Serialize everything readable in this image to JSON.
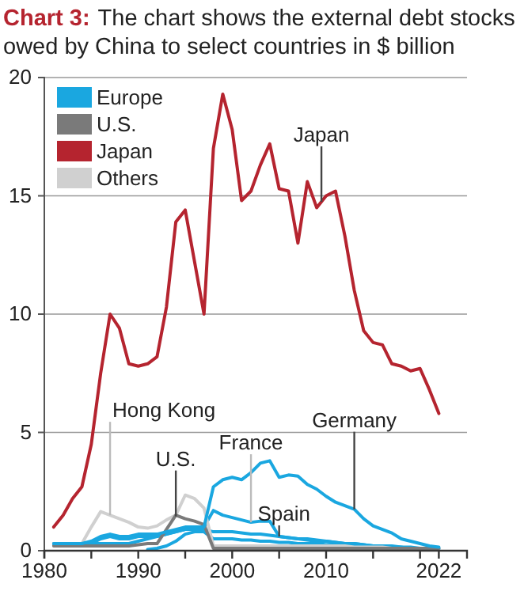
{
  "chart_data": {
    "type": "line",
    "title": "Chart 3:",
    "subtitle": "The chart shows the external debt stocks owed by China to select countries in $ billion",
    "x": [
      1981,
      1982,
      1983,
      1984,
      1985,
      1986,
      1987,
      1988,
      1989,
      1990,
      1991,
      1992,
      1993,
      1994,
      1995,
      1996,
      1997,
      1998,
      1999,
      2000,
      2001,
      2002,
      2003,
      2004,
      2005,
      2006,
      2007,
      2008,
      2009,
      2010,
      2011,
      2012,
      2013,
      2014,
      2015,
      2016,
      2017,
      2018,
      2019,
      2020,
      2021,
      2022
    ],
    "series": [
      {
        "name": "Europe",
        "color": "#1aa7e0",
        "values": [
          0.3,
          0.3,
          0.3,
          0.3,
          0.4,
          0.6,
          0.7,
          0.6,
          0.6,
          0.7,
          0.7,
          0.7,
          0.8,
          0.9,
          1.0,
          1.0,
          1.0,
          2.7,
          3.0,
          3.1,
          3.0,
          3.3,
          3.7,
          3.8,
          3.1,
          3.2,
          3.15,
          2.8,
          2.6,
          2.3,
          2.05,
          1.9,
          1.75,
          1.35,
          1.05,
          0.9,
          0.75,
          0.5,
          0.4,
          0.3,
          0.2,
          0.15
        ]
      },
      {
        "name": "U.S.",
        "color": "#7a7a7a",
        "values": [
          0.2,
          0.2,
          0.2,
          0.2,
          0.2,
          0.2,
          0.2,
          0.2,
          0.2,
          0.25,
          0.3,
          0.3,
          0.9,
          1.5,
          1.35,
          1.25,
          1.1,
          0.1,
          0.1,
          0.1,
          0.1,
          0.1,
          0.1,
          0.1,
          0.1,
          0.1,
          0.1,
          0.1,
          0.1,
          0.1,
          0.1,
          0.1,
          0.1,
          0.1,
          0.1,
          0.1,
          0.1,
          0.1,
          0.1,
          0.1,
          0.1,
          0.1
        ]
      },
      {
        "name": "Japan",
        "color": "#b5242f",
        "values": [
          1.0,
          1.5,
          2.2,
          2.7,
          4.5,
          7.5,
          10.0,
          9.4,
          7.9,
          7.8,
          7.9,
          8.2,
          10.3,
          13.9,
          14.4,
          12.2,
          10.0,
          17.0,
          19.3,
          17.8,
          14.8,
          15.2,
          16.3,
          17.2,
          15.3,
          15.2,
          13.0,
          15.6,
          14.5,
          15.0,
          15.2,
          13.3,
          11.0,
          9.3,
          8.8,
          8.7,
          7.9,
          7.8,
          7.6,
          7.7,
          6.8,
          5.8
        ]
      },
      {
        "name": "Others",
        "color": "#d0d0d0",
        "values": [
          0.3,
          0.3,
          0.3,
          0.3,
          1.0,
          1.65,
          1.5,
          1.35,
          1.2,
          1.0,
          0.95,
          1.05,
          1.3,
          1.5,
          2.35,
          2.2,
          1.8,
          0.2,
          0.2,
          0.2,
          0.2,
          0.2,
          0.2,
          0.2,
          0.2,
          0.2,
          0.2,
          0.2,
          0.2,
          0.2,
          0.2,
          0.2,
          0.15,
          0.15,
          0.15,
          0.15,
          0.1,
          0.1,
          0.1,
          0.1,
          0.1,
          0.1
        ]
      },
      {
        "color": "#1aa7e0",
        "values": [
          0.25,
          0.25,
          0.25,
          0.25,
          0.3,
          0.5,
          0.6,
          0.5,
          0.5,
          0.6,
          0.6,
          0.6,
          0.7,
          0.8,
          0.9,
          1.0,
          1.0,
          1.7,
          1.5,
          1.4,
          1.3,
          1.2,
          1.25,
          1.25,
          0.6,
          0.55,
          0.5,
          0.45,
          0.4,
          0.4,
          0.35,
          0.3,
          0.3,
          0.25,
          0.2,
          0.2,
          0.2,
          0.15,
          0.15,
          0.1,
          0.1,
          0.1
        ]
      },
      {
        "color": "#1aa7e0",
        "values": [
          0.3,
          0.3,
          0.3,
          0.3,
          0.3,
          0.3,
          0.3,
          0.3,
          0.3,
          0.4,
          0.5,
          0.6,
          0.7,
          0.8,
          0.9,
          0.9,
          0.9,
          0.8,
          0.8,
          0.8,
          0.75,
          0.7,
          0.7,
          0.65,
          0.6,
          0.55,
          0.5,
          0.5,
          0.45,
          0.4,
          0.35,
          0.3,
          0.3,
          0.25,
          0.2,
          0.2,
          0.15,
          0.15,
          0.1,
          0.1,
          0.1,
          0.1
        ]
      },
      {
        "color": "#1aa7e0",
        "values": [
          null,
          null,
          null,
          null,
          null,
          null,
          null,
          null,
          null,
          null,
          0.05,
          0.1,
          0.2,
          0.4,
          0.7,
          0.8,
          0.8,
          0.5,
          0.5,
          0.5,
          0.45,
          0.45,
          0.4,
          0.4,
          0.35,
          0.35,
          0.3,
          0.3,
          0.3,
          0.25,
          0.25,
          0.2,
          0.2,
          0.2,
          0.15,
          0.15,
          0.1,
          0.1,
          0.1,
          0.05,
          0.05,
          0.05
        ]
      }
    ],
    "xlim": [
      1980,
      2025
    ],
    "xticks": [
      1980,
      {
        "value": 1985,
        "label": null
      },
      1990,
      {
        "value": 1995,
        "label": null
      },
      2000,
      {
        "value": 2005,
        "label": null
      },
      2010,
      {
        "value": 2015,
        "label": null
      },
      {
        "value": 2020,
        "label": null
      },
      2022
    ],
    "ylim": [
      0,
      20
    ],
    "yticks": [
      0,
      5,
      10,
      15,
      20
    ],
    "grid": "y",
    "legend": "top left",
    "annotations": [
      {
        "text": "Japan",
        "x": 2009.5,
        "y": 14.75
      },
      {
        "text": "Hong Kong",
        "x": 1987,
        "y": 1.5
      },
      {
        "text": "U.S.",
        "x": 1994,
        "y": 1.45
      },
      {
        "text": "France",
        "x": 2002,
        "y": 1.2
      },
      {
        "text": "Spain",
        "x": 2005,
        "y": 0.6
      },
      {
        "text": "Germany",
        "x": 2013,
        "y": 1.75
      }
    ]
  }
}
